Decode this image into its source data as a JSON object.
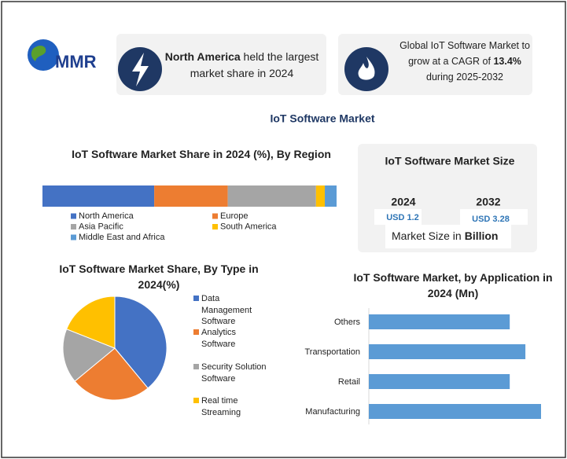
{
  "header": {
    "logo": "MMR",
    "left": {
      "bold": "North America",
      "text": "held the largest market share in 2024"
    },
    "right": {
      "text": "Global IoT Software Market to grow at a CAGR of",
      "bold": "13.4%",
      "tail": "during 2025-2032"
    }
  },
  "title": "IoT Software Market",
  "market_size": {
    "title": "IoT Software Market Size",
    "years": [
      "2024",
      "2032"
    ],
    "amounts": [
      "USD 1.2",
      "USD 3.28"
    ],
    "caption": "Market Size in",
    "unit": "Billion"
  },
  "chart_data": [
    {
      "type": "stacked_bar",
      "title": "IoT Software Market Share in 2024 (%), By Region",
      "categories": [
        "North America",
        "Europe",
        "Asia Pacific",
        "South America",
        "Middle East and Africa"
      ],
      "values": [
        38,
        25,
        30,
        3,
        4
      ],
      "colors": [
        "#4472c4",
        "#ed7d31",
        "#a5a5a5",
        "#ffc000",
        "#5b9bd5"
      ]
    },
    {
      "type": "pie",
      "title": "IoT Software Market Share, By Type in 2024(%)",
      "categories": [
        "Data Management Software",
        "Analytics Software",
        "Security Solution Software",
        "Real time Streaming"
      ],
      "values": [
        39,
        25,
        17,
        19
      ],
      "colors": [
        "#4472c4",
        "#ed7d31",
        "#a5a5a5",
        "#ffc000"
      ]
    },
    {
      "type": "bar",
      "title": "IoT Software Market, by Application in 2024 (Mn)",
      "categories": [
        "Others",
        "Transportation",
        "Retail",
        "Manufacturing"
      ],
      "values": [
        180,
        200,
        180,
        220
      ],
      "color": "#5b9bd5"
    }
  ]
}
